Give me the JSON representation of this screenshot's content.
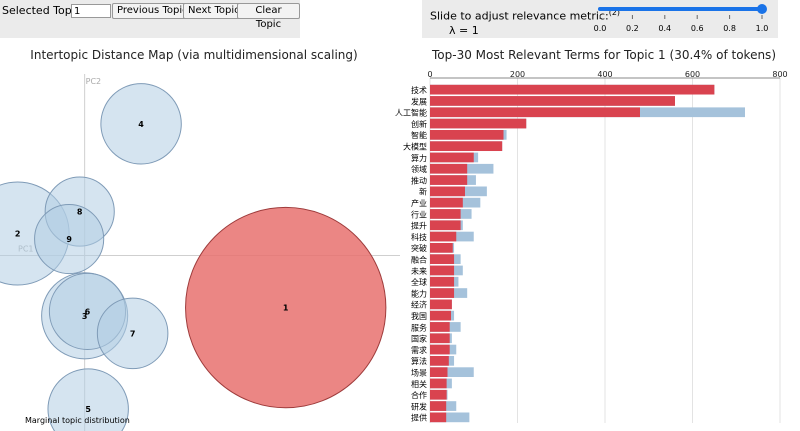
{
  "controls": {
    "selected_topic_label": "Selected Topic:",
    "selected_topic_value": "1",
    "prev_label": "Previous Topic",
    "next_label": "Next Topic",
    "clear_label": "Clear Topic",
    "slider_label": "Slide to adjust relevance metric:",
    "slider_footnote": "(2)",
    "lambda_text": "λ = 1",
    "lambda_value": 1.0,
    "slider_ticks": [
      "0.0",
      "0.2",
      "0.4",
      "0.6",
      "0.8",
      "1.0"
    ]
  },
  "chart_data": [
    {
      "type": "scatter",
      "title": "Intertopic Distance Map (via multidimensional scaling)",
      "xlabel": "PC1",
      "ylabel": "PC2",
      "legend": "Marginal topic distribution",
      "selected_topic": "1",
      "colors": {
        "topic": "#b3cde3",
        "topic_stroke": "#7f9bb7",
        "selected": "#e8716f",
        "selected_stroke": "#9e3b3b"
      },
      "points": [
        {
          "label": "1",
          "x": 0.285,
          "y": -0.095,
          "r": 0.142
        },
        {
          "label": "2",
          "x": -0.095,
          "y": 0.04,
          "r": 0.073
        },
        {
          "label": "3",
          "x": 0.0,
          "y": -0.11,
          "r": 0.061
        },
        {
          "label": "4",
          "x": 0.08,
          "y": 0.24,
          "r": 0.057
        },
        {
          "label": "5",
          "x": 0.005,
          "y": -0.28,
          "r": 0.057
        },
        {
          "label": "6",
          "x": 0.004,
          "y": -0.102,
          "r": 0.054
        },
        {
          "label": "7",
          "x": 0.068,
          "y": -0.142,
          "r": 0.05
        },
        {
          "label": "8",
          "x": -0.007,
          "y": 0.08,
          "r": 0.049
        },
        {
          "label": "9",
          "x": -0.022,
          "y": 0.03,
          "r": 0.049
        }
      ],
      "xlim": [
        -0.12,
        0.43
      ],
      "ylim": [
        -0.32,
        0.36
      ]
    },
    {
      "type": "bar",
      "title": "Top-30 Most Relevant Terms for Topic 1 (30.4% of tokens)",
      "colors": {
        "overall": "#a5c2db",
        "topic": "#d9434f"
      },
      "xlim": [
        0,
        800
      ],
      "xticks": [
        0,
        200,
        400,
        600,
        800
      ],
      "categories": [
        "技术",
        "发展",
        "人工智能",
        "创新",
        "智能",
        "大模型",
        "算力",
        "领域",
        "推动",
        "新",
        "产业",
        "行业",
        "提升",
        "科技",
        "突破",
        "融合",
        "未来",
        "全球",
        "能力",
        "经济",
        "我国",
        "服务",
        "国家",
        "需求",
        "算法",
        "场景",
        "相关",
        "合作",
        "研发",
        "提供"
      ],
      "series": [
        {
          "role": "overall",
          "values": [
            650,
            560,
            720,
            220,
            175,
            165,
            110,
            145,
            105,
            130,
            115,
            95,
            75,
            100,
            55,
            70,
            75,
            65,
            85,
            50,
            55,
            70,
            50,
            60,
            55,
            100,
            50,
            40,
            60,
            90
          ]
        },
        {
          "role": "topic",
          "values": [
            650,
            560,
            480,
            220,
            168,
            165,
            100,
            85,
            85,
            80,
            75,
            70,
            70,
            60,
            52,
            55,
            55,
            55,
            55,
            50,
            48,
            45,
            45,
            45,
            43,
            40,
            38,
            38,
            37,
            37
          ]
        }
      ]
    }
  ]
}
